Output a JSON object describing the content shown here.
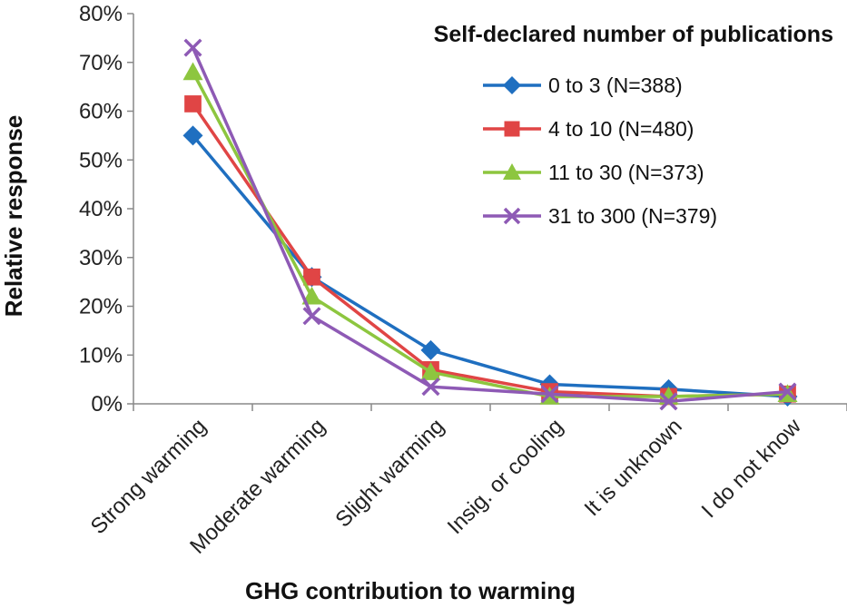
{
  "chart_data": {
    "type": "line",
    "title": "",
    "xlabel": "GHG contribution to warming",
    "ylabel": "Relative response",
    "ylim": [
      0,
      80
    ],
    "yticks": [
      "0%",
      "10%",
      "20%",
      "30%",
      "40%",
      "50%",
      "60%",
      "70%",
      "80%"
    ],
    "categories": [
      "Strong warming",
      "Moderate warming",
      "Slight warming",
      "Insig. or cooling",
      "It is unknown",
      "I do not know"
    ],
    "legend_title": "Self-declared number of publications",
    "legend_position": "top-right",
    "grid": false,
    "series": [
      {
        "name": "0 to 3 (N=388)",
        "color": "#1f6fc0",
        "marker": "diamond",
        "values": [
          55,
          26,
          11,
          4,
          3,
          1.5
        ]
      },
      {
        "name": "4 to 10 (N=480)",
        "color": "#e04545",
        "marker": "square",
        "values": [
          61.5,
          26,
          7,
          2.5,
          1.5,
          2
        ]
      },
      {
        "name": "11 to 30 (N=373)",
        "color": "#8dc63f",
        "marker": "triangle",
        "values": [
          68,
          22,
          6.5,
          1.5,
          1.5,
          2
        ]
      },
      {
        "name": "31 to 300 (N=379)",
        "color": "#8e5ab5",
        "marker": "x",
        "values": [
          73,
          18,
          3.5,
          2,
          0.5,
          2.5
        ]
      }
    ]
  }
}
